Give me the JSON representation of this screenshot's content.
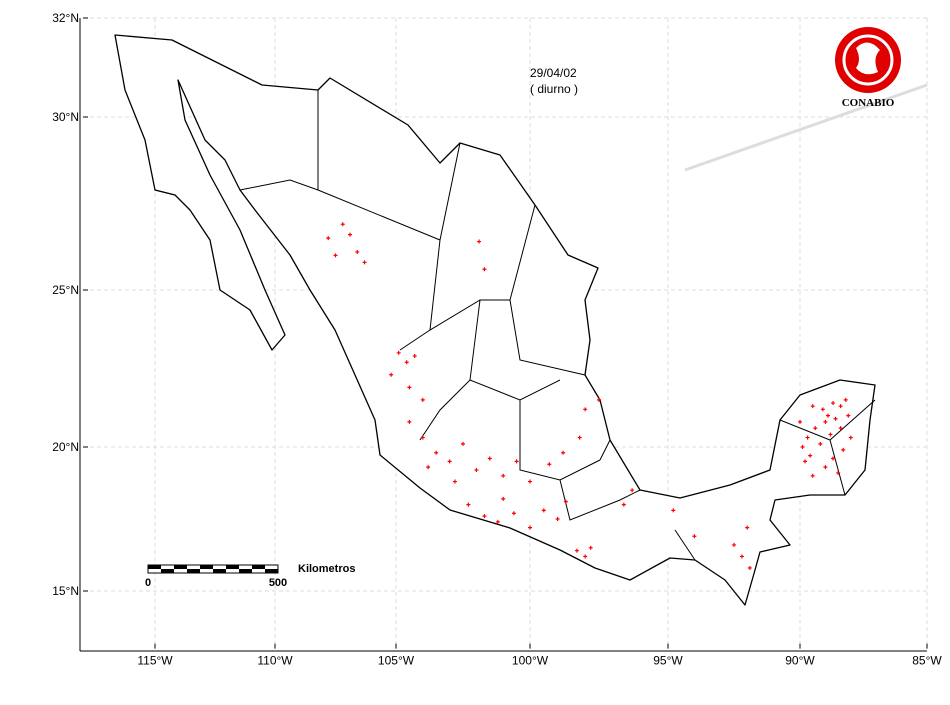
{
  "chart_data": {
    "type": "map",
    "date": "29/04/02",
    "subtitle": "( diurno )",
    "logo_text": "CONABIO",
    "xlim": [
      -118,
      -85
    ],
    "ylim": [
      13,
      32
    ],
    "xticks": [
      {
        "value": -115,
        "label": "115°W"
      },
      {
        "value": -110,
        "label": "110°W"
      },
      {
        "value": -105,
        "label": "105°W"
      },
      {
        "value": -100,
        "label": "100°W"
      },
      {
        "value": -95,
        "label": "95°W"
      },
      {
        "value": -90,
        "label": "90°W"
      },
      {
        "value": -85,
        "label": "85°W"
      }
    ],
    "yticks": [
      {
        "value": 15,
        "label": "15°N"
      },
      {
        "value": 20,
        "label": "20°N"
      },
      {
        "value": 25,
        "label": "25°N"
      },
      {
        "value": 30,
        "label": "30°N"
      },
      {
        "value": 32,
        "label": "32°N"
      }
    ],
    "grid": true,
    "scale_bar": {
      "start": 0,
      "end": 500,
      "unit": "Kilometros"
    },
    "points": {
      "color": "#ff0000",
      "x": [
        -107.8,
        -107.2,
        -106.9,
        -107.5,
        -106.6,
        -106.3,
        -104.9,
        -104.6,
        -104.3,
        -105.2,
        -104.5,
        -104.0,
        -104.5,
        -104.0,
        -103.5,
        -103.0,
        -102.5,
        -102.0,
        -101.5,
        -101.0,
        -100.5,
        -100.0,
        -103.8,
        -102.8,
        -102.3,
        -101.7,
        -101.2,
        -100.6,
        -100.0,
        -99.5,
        -99.0,
        -98.7,
        -101.0,
        -98.3,
        -98.0,
        -97.8,
        -99.3,
        -98.8,
        -98.2,
        -97.5,
        -98.0,
        -92.5,
        -92.2,
        -91.9,
        -92.0,
        -96.3,
        -94.8,
        -89.5,
        -89.1,
        -88.7,
        -88.4,
        -88.1,
        -88.6,
        -89.0,
        -89.4,
        -89.7,
        -89.9,
        -89.6,
        -89.2,
        -88.8,
        -88.4,
        -88.0,
        -88.3,
        -88.7,
        -89.0,
        -88.5,
        -89.5,
        -89.8,
        -88.9,
        -88.2,
        -90.0,
        -101.9,
        -101.7,
        -96.6,
        -94.0
      ],
      "y": [
        26.5,
        26.9,
        26.6,
        26.0,
        26.1,
        25.8,
        23.0,
        22.7,
        22.9,
        22.3,
        21.9,
        21.5,
        20.8,
        20.3,
        19.8,
        19.5,
        20.1,
        19.2,
        19.6,
        19.0,
        19.5,
        18.8,
        19.3,
        18.8,
        18.0,
        17.6,
        17.4,
        17.7,
        17.2,
        17.8,
        17.5,
        18.1,
        18.2,
        16.4,
        16.2,
        16.5,
        19.4,
        19.8,
        20.3,
        21.5,
        21.2,
        16.6,
        16.2,
        15.8,
        17.2,
        18.5,
        17.8,
        21.3,
        21.2,
        21.4,
        21.3,
        21.0,
        20.9,
        20.8,
        20.6,
        20.3,
        20.0,
        19.7,
        20.1,
        20.4,
        20.6,
        20.3,
        19.9,
        19.6,
        19.3,
        19.1,
        19.0,
        19.5,
        21.0,
        21.5,
        20.8,
        26.4,
        25.6,
        18.0,
        16.9
      ]
    }
  }
}
